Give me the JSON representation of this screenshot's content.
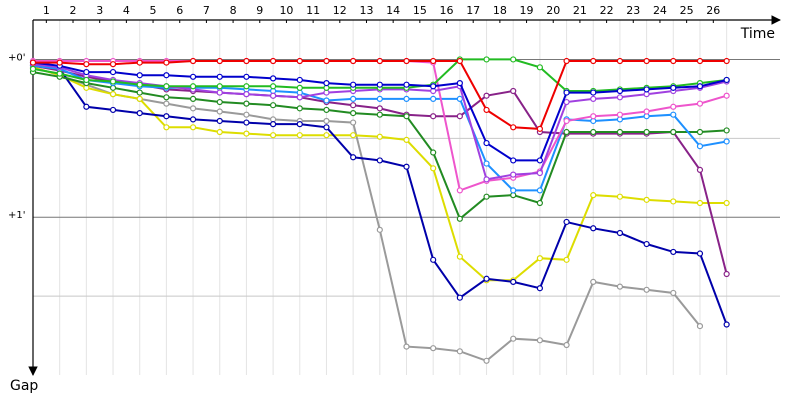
{
  "chart_data": {
    "type": "line",
    "x_label": "Time",
    "y_label": "Gap",
    "x": [
      0,
      1,
      2,
      3,
      4,
      5,
      6,
      7,
      8,
      9,
      10,
      11,
      12,
      13,
      14,
      15,
      16,
      17,
      18,
      19,
      20,
      21,
      22,
      23,
      24,
      25,
      26
    ],
    "xlim": [
      0,
      28
    ],
    "xticks": [
      {
        "value": 0.5,
        "label": "1"
      },
      {
        "value": 1.5,
        "label": "2"
      },
      {
        "value": 2.5,
        "label": "3"
      },
      {
        "value": 3.5,
        "label": "4"
      },
      {
        "value": 4.5,
        "label": "5"
      },
      {
        "value": 5.5,
        "label": "6"
      },
      {
        "value": 6.5,
        "label": "7"
      },
      {
        "value": 7.5,
        "label": "8"
      },
      {
        "value": 8.5,
        "label": "9"
      },
      {
        "value": 9.5,
        "label": "10"
      },
      {
        "value": 10.5,
        "label": "11"
      },
      {
        "value": 11.5,
        "label": "12"
      },
      {
        "value": 12.5,
        "label": "13"
      },
      {
        "value": 13.5,
        "label": "14"
      },
      {
        "value": 14.5,
        "label": "15"
      },
      {
        "value": 15.5,
        "label": "16"
      },
      {
        "value": 16.5,
        "label": "17"
      },
      {
        "value": 17.5,
        "label": "18"
      },
      {
        "value": 18.5,
        "label": "19"
      },
      {
        "value": 19.5,
        "label": "20"
      },
      {
        "value": 20.5,
        "label": "21"
      },
      {
        "value": 21.5,
        "label": "22"
      },
      {
        "value": 22.5,
        "label": "23"
      },
      {
        "value": 23.5,
        "label": "24"
      },
      {
        "value": 24.5,
        "label": "25"
      },
      {
        "value": 25.5,
        "label": "26"
      }
    ],
    "ylim": [
      -0.25,
      2.0
    ],
    "yticks": [
      {
        "value": 0,
        "label": "+0'"
      },
      {
        "value": 1,
        "label": "+1'"
      }
    ],
    "minor_yticks": [
      0.5,
      1.5
    ],
    "series": [
      {
        "color": "#9a9a9a",
        "values": [
          0.05,
          0.1,
          0.16,
          0.22,
          0.25,
          0.28,
          0.31,
          0.33,
          0.35,
          0.38,
          0.39,
          0.39,
          0.4,
          1.08,
          1.82,
          1.83,
          1.85,
          1.91,
          1.77,
          1.78,
          1.81,
          1.41,
          1.44,
          1.46,
          1.48,
          1.69,
          null
        ]
      },
      {
        "color": "#dddd00",
        "values": [
          0.05,
          0.1,
          0.18,
          0.22,
          0.25,
          0.43,
          0.43,
          0.46,
          0.47,
          0.48,
          0.48,
          0.48,
          0.48,
          0.49,
          0.51,
          0.69,
          1.25,
          1.4,
          1.4,
          1.26,
          1.27,
          0.86,
          0.87,
          0.89,
          0.9,
          0.91,
          0.91
        ]
      },
      {
        "color": "#0000aa",
        "values": [
          0.04,
          0.06,
          0.3,
          0.32,
          0.34,
          0.36,
          0.38,
          0.39,
          0.4,
          0.41,
          0.41,
          0.43,
          0.62,
          0.64,
          0.68,
          1.27,
          1.51,
          1.39,
          1.41,
          1.45,
          1.03,
          1.07,
          1.1,
          1.17,
          1.22,
          1.23,
          1.68
        ]
      },
      {
        "color": "#882288",
        "values": [
          0.04,
          0.07,
          0.11,
          0.14,
          0.16,
          0.19,
          0.2,
          0.21,
          0.22,
          0.23,
          0.24,
          0.27,
          0.29,
          0.31,
          0.35,
          0.36,
          0.36,
          0.23,
          0.2,
          0.46,
          0.47,
          0.47,
          0.47,
          0.47,
          0.46,
          0.7,
          1.36
        ]
      },
      {
        "color": "#228b22",
        "values": [
          0.08,
          0.11,
          0.15,
          0.18,
          0.21,
          0.24,
          0.25,
          0.27,
          0.28,
          0.29,
          0.31,
          0.32,
          0.34,
          0.35,
          0.36,
          0.59,
          1.01,
          0.87,
          0.86,
          0.91,
          0.46,
          0.46,
          0.46,
          0.46,
          0.46,
          0.46,
          0.45
        ]
      },
      {
        "color": "#1e90ff",
        "values": [
          0.04,
          0.06,
          0.13,
          0.15,
          0.17,
          0.18,
          0.18,
          0.18,
          0.19,
          0.2,
          0.21,
          0.26,
          0.25,
          0.25,
          0.25,
          0.25,
          0.25,
          0.66,
          0.83,
          0.83,
          0.38,
          0.39,
          0.38,
          0.36,
          0.35,
          0.55,
          0.52
        ]
      },
      {
        "color": "#ee55cc",
        "values": [
          0.01,
          0.01,
          0.01,
          0.01,
          0.01,
          0.01,
          0.01,
          0.01,
          0.01,
          0.01,
          0.01,
          0.01,
          0.01,
          0.01,
          0.01,
          0.02,
          0.83,
          0.77,
          0.75,
          0.71,
          0.39,
          0.36,
          0.35,
          0.33,
          0.3,
          0.28,
          0.23
        ]
      },
      {
        "color": "#a040e0",
        "values": [
          0.03,
          0.05,
          0.1,
          0.13,
          0.15,
          0.17,
          0.19,
          0.21,
          0.22,
          0.23,
          0.24,
          0.21,
          0.2,
          0.19,
          0.19,
          0.2,
          0.17,
          0.76,
          0.73,
          0.72,
          0.27,
          0.25,
          0.24,
          0.22,
          0.2,
          0.18,
          0.14
        ]
      },
      {
        "color": "#22bb22",
        "values": [
          0.06,
          0.09,
          0.13,
          0.14,
          0.16,
          0.17,
          0.17,
          0.17,
          0.17,
          0.17,
          0.18,
          0.18,
          0.18,
          0.18,
          0.18,
          0.16,
          0,
          0,
          0,
          0.05,
          0.2,
          0.2,
          0.19,
          0.18,
          0.17,
          0.15,
          0.13
        ]
      },
      {
        "color": "#0000cc",
        "values": [
          0.02,
          0.04,
          0.08,
          0.08,
          0.1,
          0.1,
          0.11,
          0.11,
          0.11,
          0.12,
          0.13,
          0.15,
          0.16,
          0.16,
          0.16,
          0.17,
          0.15,
          0.53,
          0.64,
          0.64,
          0.21,
          0.21,
          0.2,
          0.19,
          0.18,
          0.17,
          0.13
        ]
      },
      {
        "color": "#ee0000",
        "values": [
          0.02,
          0.02,
          0.03,
          0.03,
          0.02,
          0.02,
          0.01,
          0.01,
          0.01,
          0.01,
          0.01,
          0.01,
          0.01,
          0.01,
          0.01,
          0.01,
          0.01,
          0.32,
          0.43,
          0.44,
          0.01,
          0.01,
          0.01,
          0.01,
          0.01,
          0.01,
          0.01
        ]
      }
    ]
  }
}
